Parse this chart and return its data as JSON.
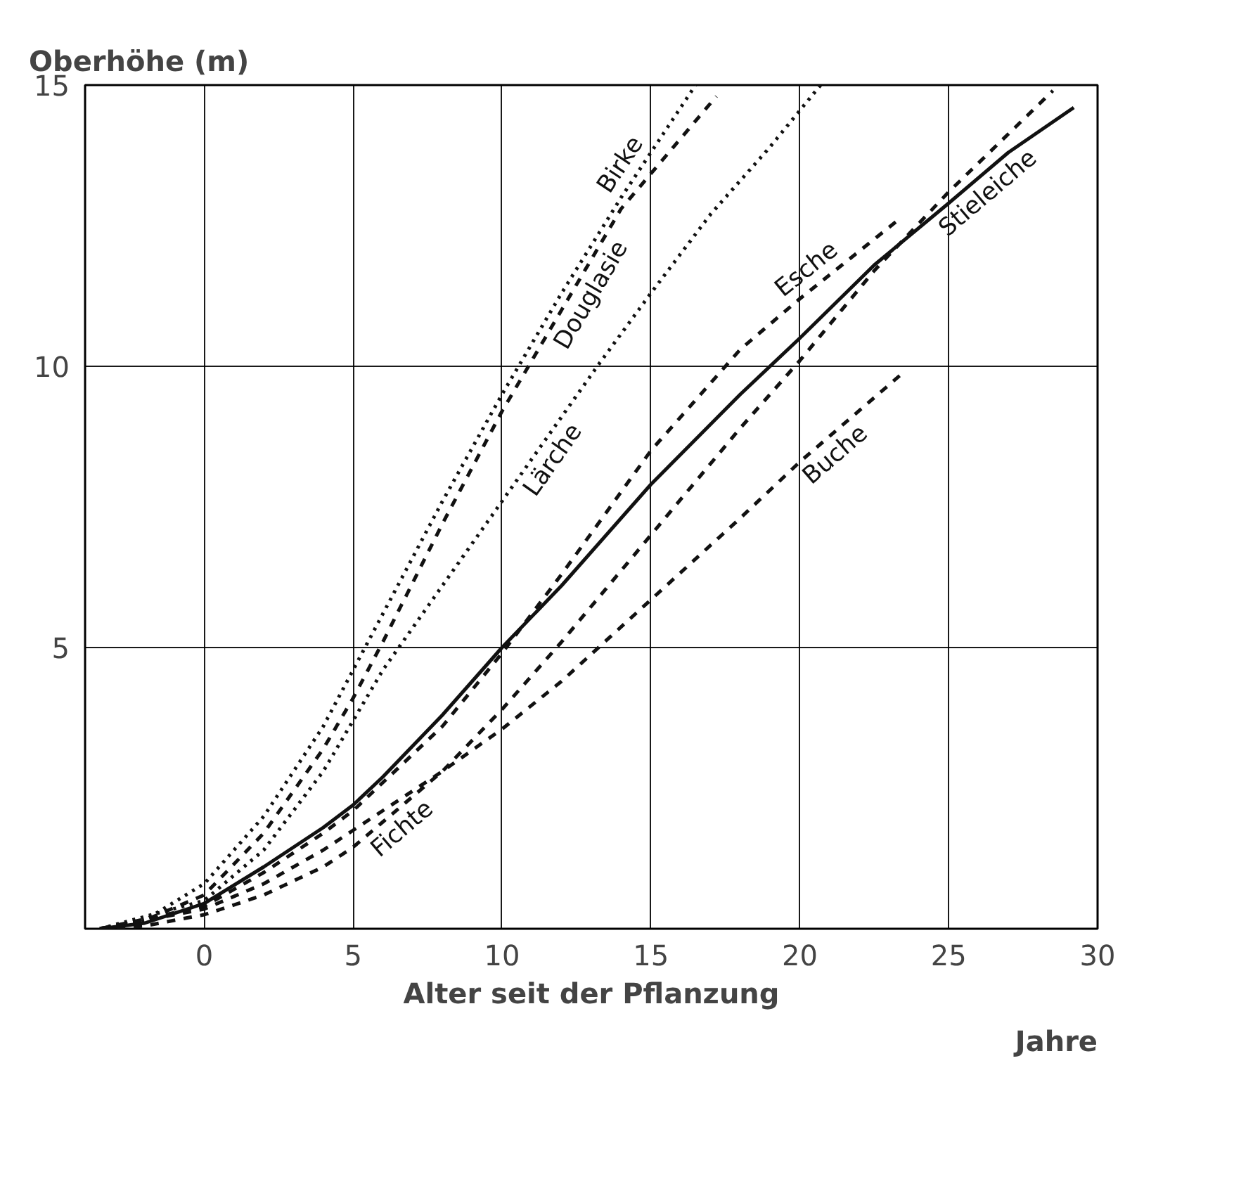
{
  "chart_data": {
    "type": "line",
    "ylabel": "Oberhöhe (m)",
    "xlabel": "Alter seit der Pflanzung",
    "annotations": [
      "Jahre"
    ],
    "xlim": [
      -4,
      30
    ],
    "ylim": [
      0,
      15
    ],
    "xticks": [
      0,
      5,
      10,
      15,
      20,
      25,
      30
    ],
    "yticks": [
      5,
      10,
      15
    ],
    "grid": true,
    "legend": false,
    "series": [
      {
        "name": "Birke",
        "color": "#111111",
        "line_style": "dotted",
        "x": [
          -3.5,
          -2,
          0,
          2,
          4,
          5,
          6,
          8,
          10,
          12,
          14,
          16.5
        ],
        "values": [
          0,
          0.15,
          0.8,
          2.0,
          3.6,
          4.6,
          5.6,
          7.6,
          9.5,
          11.3,
          13.0,
          15.0
        ]
      },
      {
        "name": "Douglasie",
        "color": "#111111",
        "line_style": "dashed",
        "x": [
          -3.5,
          -2,
          0,
          2,
          4,
          5,
          6,
          8,
          10,
          12,
          14,
          17.2
        ],
        "values": [
          0,
          0.15,
          0.6,
          1.7,
          3.2,
          4.1,
          5.1,
          7.2,
          9.2,
          11.0,
          12.8,
          14.8
        ]
      },
      {
        "name": "Lärche",
        "color": "#111111",
        "line_style": "dotted",
        "x": [
          -3.5,
          0,
          2,
          4,
          5,
          6,
          8,
          10,
          12,
          13.2,
          15,
          17,
          19,
          20.7
        ],
        "values": [
          0,
          0.5,
          1.4,
          2.8,
          3.7,
          4.6,
          6.1,
          7.6,
          9.1,
          10,
          11.3,
          12.7,
          13.9,
          15
        ]
      },
      {
        "name": "Stieleiche",
        "color": "#111111",
        "line_style": "solid",
        "x": [
          -3.5,
          -2,
          0,
          2,
          4,
          5,
          6,
          8,
          10,
          12,
          15,
          18,
          20,
          22.5,
          25,
          27,
          29.2
        ],
        "values": [
          0,
          0.1,
          0.45,
          1.1,
          1.8,
          2.2,
          2.7,
          3.8,
          5.0,
          6.1,
          7.9,
          9.5,
          10.5,
          11.8,
          12.9,
          13.8,
          14.6
        ]
      },
      {
        "name": "Esche",
        "color": "#111111",
        "line_style": "dashed",
        "x": [
          -3.5,
          0,
          2,
          4,
          5,
          6,
          8,
          10,
          12,
          15,
          18,
          20,
          23.3
        ],
        "values": [
          0,
          0.4,
          1.0,
          1.7,
          2.1,
          2.6,
          3.6,
          4.9,
          6.3,
          8.5,
          10.3,
          11.2,
          12.6
        ]
      },
      {
        "name": "Fichte",
        "color": "#111111",
        "line_style": "dashed",
        "x": [
          -3.5,
          -2,
          0,
          2,
          4,
          5,
          6,
          8,
          10,
          12,
          15,
          18,
          20,
          22.5,
          25,
          28.5
        ],
        "values": [
          0,
          0.05,
          0.25,
          0.6,
          1.1,
          1.45,
          1.9,
          2.8,
          3.9,
          5.1,
          7.0,
          8.9,
          10.1,
          11.7,
          13.1,
          14.9
        ]
      },
      {
        "name": "Buche",
        "color": "#111111",
        "line_style": "dashed",
        "x": [
          -3.5,
          0,
          2,
          4,
          5,
          6,
          8,
          10,
          12,
          15,
          18,
          20,
          23.5
        ],
        "values": [
          0,
          0.35,
          0.8,
          1.4,
          1.75,
          2.1,
          2.8,
          3.55,
          4.4,
          5.85,
          7.3,
          8.3,
          9.9
        ]
      }
    ]
  }
}
